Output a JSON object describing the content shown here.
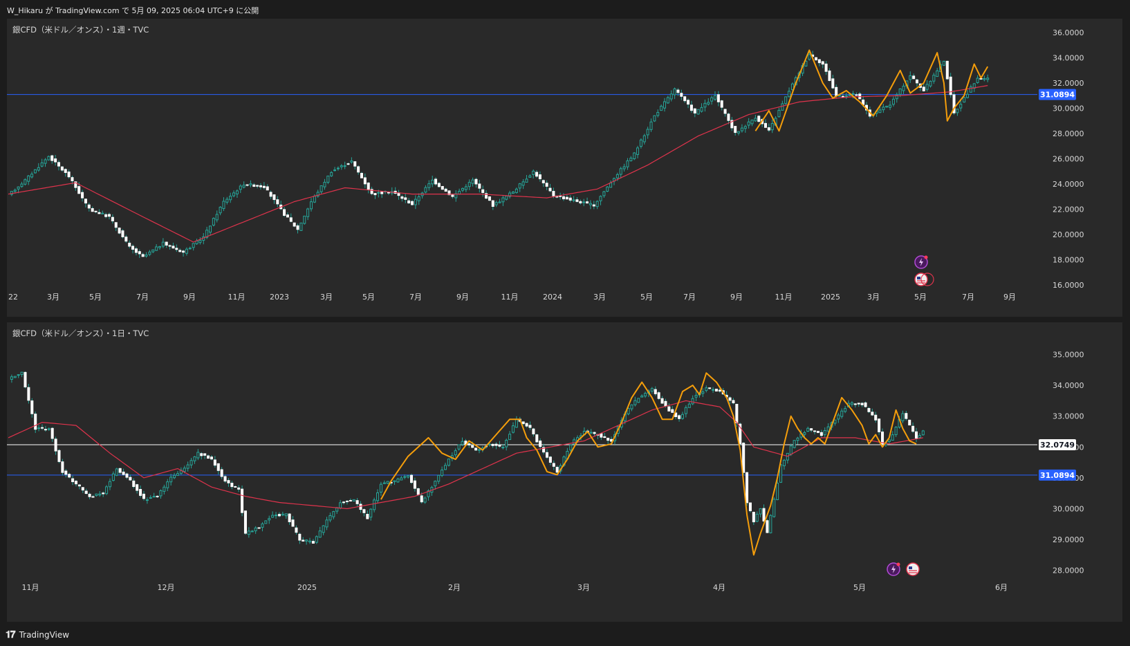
{
  "header": {
    "text": "W_Hikaru が TradingView.com で 5月 09, 2025 06:04 UTC+9 に公開"
  },
  "footer": {
    "brand": "TradingView",
    "logo_icon": "tradingview-logo-icon"
  },
  "colors": {
    "up": "#26a69a",
    "down": "#ffffff",
    "ma": "#e0334c",
    "pattern": "#f59e0b",
    "hline_blue": "#2962ff",
    "hline_white": "#ffffff"
  },
  "chart_data": [
    {
      "type": "candlestick",
      "title": "銀CFD（米ドル／オンス）・1週・TVC",
      "y_ticks": [
        "36.0000",
        "34.0000",
        "32.0000",
        "30.0000",
        "28.0000",
        "26.0000",
        "24.0000",
        "22.0000",
        "20.0000",
        "18.0000",
        "16.0000"
      ],
      "ylim": [
        16,
        36
      ],
      "x_labels": [
        "22",
        "3月",
        "5月",
        "7月",
        "9月",
        "11月",
        "2023",
        "3月",
        "5月",
        "7月",
        "9月",
        "11月",
        "2024",
        "3月",
        "5月",
        "7月",
        "9月",
        "11月",
        "2025",
        "3月",
        "5月",
        "7月",
        "9月"
      ],
      "horizontal_lines": [
        {
          "value": 31.0894,
          "label": "31.0894",
          "color": "#2962ff"
        }
      ],
      "anchors": [
        [
          0,
          23.1
        ],
        [
          5,
          24.3
        ],
        [
          12,
          26.2
        ],
        [
          18,
          24.6
        ],
        [
          24,
          22.0
        ],
        [
          30,
          21.4
        ],
        [
          36,
          19.0
        ],
        [
          40,
          18.2
        ],
        [
          46,
          19.3
        ],
        [
          52,
          18.6
        ],
        [
          58,
          19.8
        ],
        [
          64,
          22.6
        ],
        [
          70,
          24.0
        ],
        [
          76,
          23.8
        ],
        [
          82,
          21.6
        ],
        [
          86,
          20.4
        ],
        [
          90,
          22.6
        ],
        [
          96,
          25.0
        ],
        [
          102,
          25.8
        ],
        [
          108,
          23.2
        ],
        [
          114,
          23.4
        ],
        [
          120,
          22.4
        ],
        [
          126,
          24.3
        ],
        [
          132,
          23.0
        ],
        [
          138,
          24.3
        ],
        [
          144,
          22.3
        ],
        [
          150,
          23.4
        ],
        [
          156,
          25.0
        ],
        [
          162,
          23.1
        ],
        [
          168,
          22.7
        ],
        [
          174,
          22.3
        ],
        [
          180,
          24.5
        ],
        [
          186,
          26.4
        ],
        [
          192,
          29.4
        ],
        [
          198,
          31.5
        ],
        [
          204,
          29.6
        ],
        [
          210,
          31.0
        ],
        [
          216,
          28.0
        ],
        [
          222,
          29.3
        ],
        [
          226,
          28.2
        ],
        [
          232,
          31.4
        ],
        [
          238,
          34.3
        ],
        [
          242,
          33.5
        ],
        [
          246,
          31.0
        ],
        [
          252,
          31.1
        ],
        [
          256,
          29.4
        ],
        [
          262,
          30.3
        ],
        [
          268,
          32.6
        ],
        [
          272,
          31.4
        ],
        [
          278,
          33.8
        ],
        [
          281,
          29.6
        ],
        [
          284,
          30.8
        ],
        [
          288,
          32.4
        ],
        [
          291,
          32.3
        ]
      ],
      "ma_anchors": [
        [
          0,
          23.2
        ],
        [
          20,
          24.1
        ],
        [
          40,
          21.4
        ],
        [
          55,
          19.4
        ],
        [
          70,
          21.0
        ],
        [
          85,
          22.6
        ],
        [
          100,
          23.7
        ],
        [
          120,
          23.2
        ],
        [
          140,
          23.2
        ],
        [
          160,
          22.9
        ],
        [
          175,
          23.6
        ],
        [
          190,
          25.5
        ],
        [
          205,
          27.8
        ],
        [
          220,
          29.5
        ],
        [
          235,
          30.5
        ],
        [
          250,
          30.9
        ],
        [
          265,
          31.0
        ],
        [
          280,
          31.3
        ],
        [
          291,
          31.8
        ]
      ],
      "pattern_paths": [
        [
          [
            222,
            28.2
          ],
          [
            226,
            29.8
          ],
          [
            229,
            28.2
          ],
          [
            234,
            32.0
          ],
          [
            238,
            34.6
          ],
          [
            242,
            32.0
          ],
          [
            245,
            30.8
          ],
          [
            249,
            31.4
          ],
          [
            253,
            30.5
          ],
          [
            257,
            29.4
          ],
          [
            261,
            31.0
          ],
          [
            265,
            33.0
          ],
          [
            268,
            31.2
          ],
          [
            272,
            32.0
          ],
          [
            276,
            34.4
          ],
          [
            278,
            32.0
          ],
          [
            279,
            29.0
          ],
          [
            281,
            30.0
          ],
          [
            284,
            31.0
          ],
          [
            287,
            33.5
          ],
          [
            289,
            32.4
          ],
          [
            291,
            33.3
          ]
        ]
      ]
    },
    {
      "type": "candlestick",
      "title": "銀CFD（米ドル／オンス）・1日・TVC",
      "y_ticks": [
        "35.0000",
        "34.0000",
        "33.0000",
        "32.0000",
        "31.0000",
        "30.0000",
        "29.0000",
        "28.0000"
      ],
      "ylim": [
        27.7,
        35.55
      ],
      "x_labels": [
        "11月",
        "12月",
        "2025",
        "2月",
        "3月",
        "4月",
        "5月",
        "6月"
      ],
      "horizontal_lines": [
        {
          "value": 32.0749,
          "label": "32.0749",
          "color": "#ffffff"
        },
        {
          "value": 31.0894,
          "label": "31.0894",
          "color": "#2962ff"
        }
      ],
      "anchors": [
        [
          0,
          34.2
        ],
        [
          4,
          34.4
        ],
        [
          8,
          32.6
        ],
        [
          12,
          32.6
        ],
        [
          16,
          31.2
        ],
        [
          20,
          30.8
        ],
        [
          24,
          30.4
        ],
        [
          28,
          30.5
        ],
        [
          32,
          31.3
        ],
        [
          36,
          30.9
        ],
        [
          40,
          30.3
        ],
        [
          44,
          30.4
        ],
        [
          48,
          31.0
        ],
        [
          52,
          31.3
        ],
        [
          56,
          31.8
        ],
        [
          60,
          31.6
        ],
        [
          64,
          30.9
        ],
        [
          68,
          30.6
        ],
        [
          70,
          29.2
        ],
        [
          74,
          29.4
        ],
        [
          78,
          29.8
        ],
        [
          82,
          29.8
        ],
        [
          86,
          29.0
        ],
        [
          90,
          28.9
        ],
        [
          94,
          29.6
        ],
        [
          98,
          30.2
        ],
        [
          102,
          30.3
        ],
        [
          106,
          29.7
        ],
        [
          110,
          30.8
        ],
        [
          114,
          30.9
        ],
        [
          118,
          31.1
        ],
        [
          122,
          30.2
        ],
        [
          126,
          30.9
        ],
        [
          130,
          31.6
        ],
        [
          134,
          32.2
        ],
        [
          138,
          31.9
        ],
        [
          142,
          32.1
        ],
        [
          146,
          32.0
        ],
        [
          150,
          32.9
        ],
        [
          154,
          32.6
        ],
        [
          158,
          31.8
        ],
        [
          162,
          31.2
        ],
        [
          166,
          32.1
        ],
        [
          170,
          32.5
        ],
        [
          174,
          32.4
        ],
        [
          178,
          32.2
        ],
        [
          182,
          33.1
        ],
        [
          186,
          33.6
        ],
        [
          190,
          33.9
        ],
        [
          194,
          33.3
        ],
        [
          198,
          32.9
        ],
        [
          202,
          33.6
        ],
        [
          206,
          33.9
        ],
        [
          210,
          33.8
        ],
        [
          214,
          33.4
        ],
        [
          216,
          32.1
        ],
        [
          218,
          30.2
        ],
        [
          220,
          29.6
        ],
        [
          222,
          30.0
        ],
        [
          224,
          29.2
        ],
        [
          226,
          30.3
        ],
        [
          228,
          31.4
        ],
        [
          232,
          32.2
        ],
        [
          236,
          32.6
        ],
        [
          240,
          32.4
        ],
        [
          244,
          32.9
        ],
        [
          248,
          33.4
        ],
        [
          252,
          33.4
        ],
        [
          256,
          32.9
        ],
        [
          258,
          32.1
        ],
        [
          260,
          32.2
        ],
        [
          264,
          33.1
        ],
        [
          268,
          32.3
        ],
        [
          270,
          32.5
        ]
      ],
      "ma_anchors": [
        [
          0,
          32.3
        ],
        [
          10,
          32.8
        ],
        [
          20,
          32.7
        ],
        [
          30,
          31.8
        ],
        [
          40,
          31.0
        ],
        [
          50,
          31.3
        ],
        [
          60,
          30.7
        ],
        [
          70,
          30.4
        ],
        [
          80,
          30.2
        ],
        [
          90,
          30.1
        ],
        [
          100,
          30.0
        ],
        [
          110,
          30.2
        ],
        [
          120,
          30.4
        ],
        [
          130,
          30.8
        ],
        [
          140,
          31.3
        ],
        [
          150,
          31.8
        ],
        [
          160,
          32.0
        ],
        [
          170,
          32.2
        ],
        [
          180,
          32.7
        ],
        [
          190,
          33.2
        ],
        [
          200,
          33.5
        ],
        [
          210,
          33.3
        ],
        [
          215,
          32.8
        ],
        [
          220,
          32.0
        ],
        [
          230,
          31.7
        ],
        [
          240,
          32.3
        ],
        [
          250,
          32.3
        ],
        [
          260,
          32.1
        ],
        [
          270,
          32.3
        ]
      ],
      "pattern_paths": [
        [
          [
            110,
            30.3
          ],
          [
            113,
            30.9
          ],
          [
            118,
            31.7
          ],
          [
            124,
            32.3
          ],
          [
            128,
            31.8
          ],
          [
            132,
            31.6
          ],
          [
            136,
            32.2
          ],
          [
            140,
            31.9
          ],
          [
            144,
            32.4
          ],
          [
            148,
            32.9
          ],
          [
            151,
            32.9
          ],
          [
            153,
            32.3
          ],
          [
            156,
            31.9
          ],
          [
            159,
            31.2
          ],
          [
            162,
            31.1
          ],
          [
            165,
            31.6
          ],
          [
            168,
            32.2
          ],
          [
            171,
            32.5
          ],
          [
            174,
            32.0
          ],
          [
            178,
            32.1
          ],
          [
            181,
            32.8
          ],
          [
            184,
            33.6
          ],
          [
            187,
            34.1
          ],
          [
            190,
            33.6
          ],
          [
            193,
            32.9
          ],
          [
            196,
            32.9
          ],
          [
            199,
            33.8
          ],
          [
            202,
            34.0
          ],
          [
            204,
            33.7
          ],
          [
            206,
            34.4
          ],
          [
            209,
            34.1
          ],
          [
            212,
            33.6
          ],
          [
            214,
            33.0
          ],
          [
            216,
            31.9
          ],
          [
            218,
            29.8
          ],
          [
            220,
            28.5
          ],
          [
            222,
            29.2
          ],
          [
            225,
            30.1
          ],
          [
            227,
            31.0
          ],
          [
            229,
            32.1
          ],
          [
            231,
            33.0
          ],
          [
            233,
            32.6
          ],
          [
            235,
            32.3
          ],
          [
            237,
            32.1
          ],
          [
            239,
            32.3
          ],
          [
            241,
            32.1
          ],
          [
            243,
            32.7
          ],
          [
            246,
            33.6
          ],
          [
            249,
            33.2
          ],
          [
            252,
            32.7
          ],
          [
            254,
            32.1
          ],
          [
            256,
            32.4
          ],
          [
            258,
            32.0
          ],
          [
            260,
            32.3
          ],
          [
            262,
            33.2
          ],
          [
            264,
            32.6
          ],
          [
            266,
            32.2
          ],
          [
            268,
            32.1
          ]
        ]
      ]
    }
  ]
}
